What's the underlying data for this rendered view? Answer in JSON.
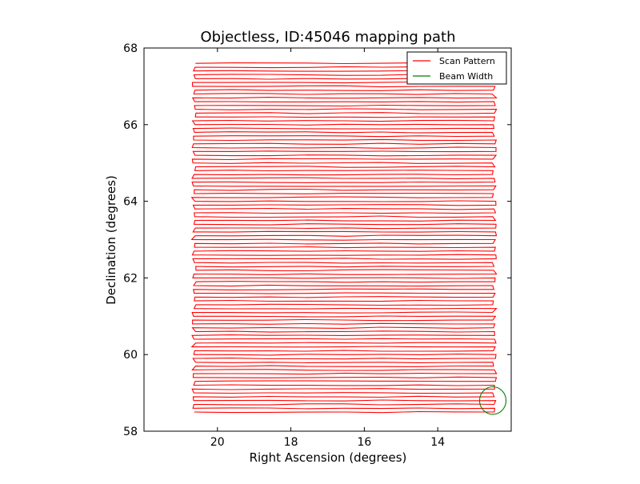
{
  "chart_data": {
    "type": "line",
    "title": "Objectless, ID:45046 mapping path",
    "xlabel": "Right Ascension (degrees)",
    "ylabel": "Declination (degrees)",
    "x_inverted": true,
    "xlim": [
      22.0,
      12.0
    ],
    "ylim": [
      58,
      68
    ],
    "xticks": [
      20,
      18,
      16,
      14
    ],
    "yticks": [
      58,
      60,
      62,
      64,
      66,
      68
    ],
    "xtick_labels": [
      "20",
      "18",
      "16",
      "14"
    ],
    "ytick_labels": [
      "58",
      "60",
      "62",
      "64",
      "66",
      "68"
    ],
    "grid": false,
    "legend_position": "top-right",
    "series": [
      {
        "name": "Scan Pattern",
        "color": "#ff0000",
        "pattern": "raster",
        "ra_range": [
          12.4,
          20.7
        ],
        "dec_range": [
          58.5,
          67.6
        ],
        "row_spacing": 0.1
      },
      {
        "name": "Beam Width",
        "color": "#008000",
        "shape": "circle",
        "center": [
          12.5,
          58.8
        ],
        "radius_deg": 0.36
      }
    ]
  }
}
